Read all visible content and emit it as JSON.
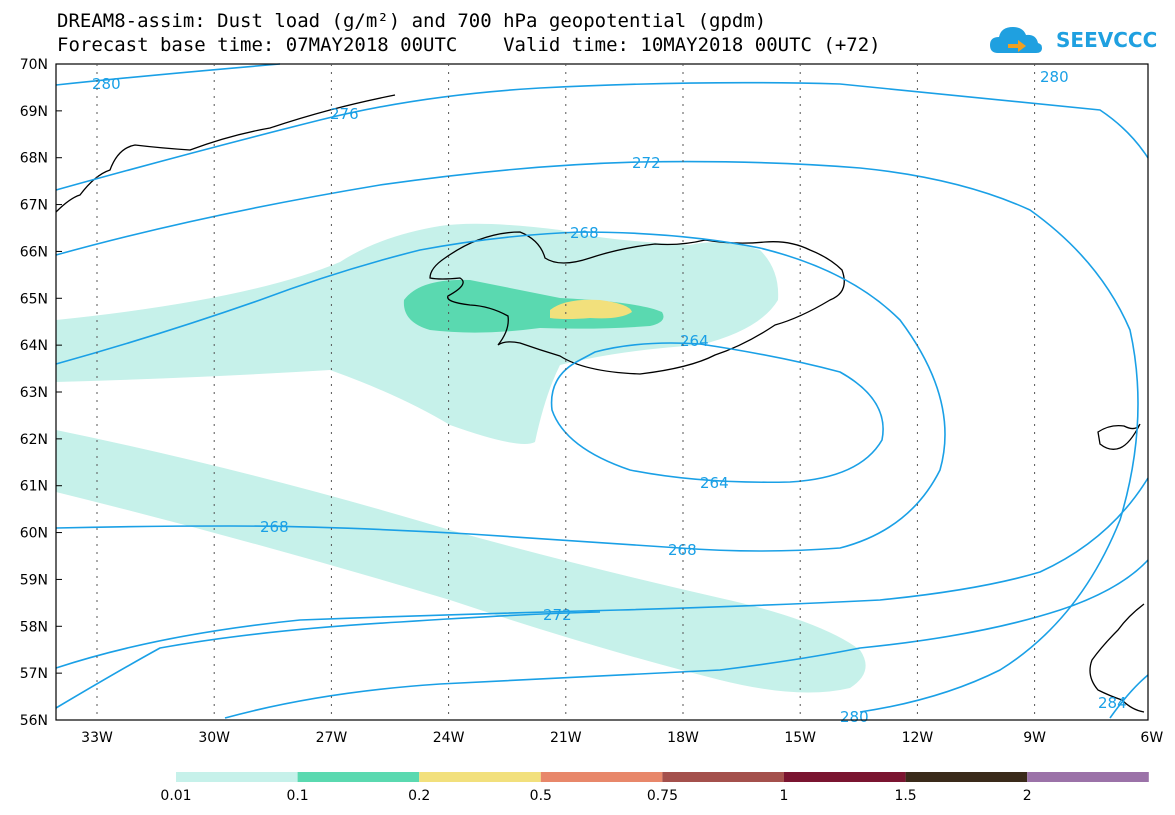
{
  "header": {
    "title_line1": "DREAM8-assim: Dust load (g/m²) and 700 hPa geopotential (gpdm)",
    "title_line2": "Forecast base time: 07MAY2018 00UTC    Valid time: 10MAY2018 00UTC (+72)",
    "logo_text": "SEEVCCC"
  },
  "map": {
    "lat_labels": [
      "70N",
      "69N",
      "68N",
      "67N",
      "66N",
      "65N",
      "64N",
      "63N",
      "62N",
      "61N",
      "60N",
      "59N",
      "58N",
      "57N",
      "56N"
    ],
    "lon_labels": [
      "33W",
      "30W",
      "27W",
      "24W",
      "21W",
      "18W",
      "15W",
      "12W",
      "9W",
      "6W"
    ],
    "contour_labels": [
      "280",
      "276",
      "272",
      "268",
      "264",
      "264",
      "268",
      "272",
      "280",
      "280",
      "284"
    ],
    "colors": {
      "contour": "#1aa0e6",
      "coast": "#000000",
      "dust_0_01": "#c6f1ea",
      "dust_0_1": "#5ad9b0",
      "dust_0_2": "#f2e07c"
    }
  },
  "colorbar": {
    "labels": [
      "0.01",
      "0.1",
      "0.2",
      "0.5",
      "0.75",
      "1",
      "1.5",
      "2"
    ],
    "colors": [
      "#c6f1ea",
      "#5ad9b0",
      "#f2e07c",
      "#e8876a",
      "#a4504c",
      "#7a1430",
      "#3a2a1a",
      "#9b72a8"
    ]
  }
}
